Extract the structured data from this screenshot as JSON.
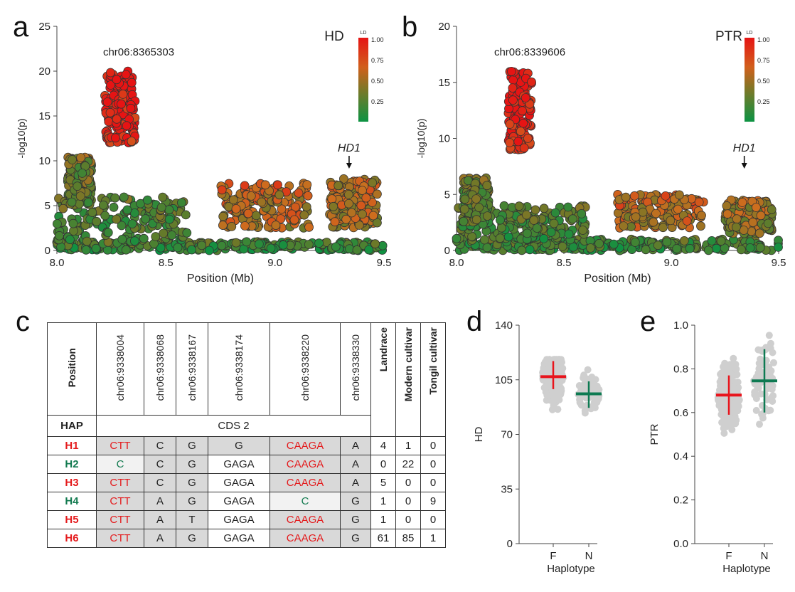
{
  "panels": {
    "a": "a",
    "b": "b",
    "c": "c",
    "d": "d",
    "e": "e"
  },
  "chart_data": [
    {
      "type": "scatter",
      "panel": "a",
      "trait": "HD",
      "lead_snp_label": "chr06:8365303",
      "gene_label": "HD1",
      "gene_position_mb": 9.34,
      "xlabel": "Position (Mb)",
      "ylabel": "-log10(p)",
      "xlim": [
        8.0,
        9.5
      ],
      "ylim": [
        0,
        25
      ],
      "xticks": [
        "8.0",
        "8.5",
        "9.0",
        "9.5"
      ],
      "yticks": [
        "0",
        "5",
        "10",
        "15",
        "20",
        "25"
      ],
      "legend_title": "LD",
      "legend_ticks": [
        "1.00",
        "0.75",
        "0.50",
        "0.25"
      ],
      "legend_placement": "top-right",
      "clusters": [
        {
          "x_range": [
            8.22,
            8.36
          ],
          "y_range": [
            12,
            20
          ],
          "ld": 0.95
        },
        {
          "x_range": [
            8.05,
            8.16
          ],
          "y_range": [
            5,
            10.5
          ],
          "ld": 0.35
        },
        {
          "x_range": [
            8.75,
            9.16
          ],
          "y_range": [
            2.5,
            7.5
          ],
          "ld": 0.6
        },
        {
          "x_range": [
            9.25,
            9.47
          ],
          "y_range": [
            2.5,
            8
          ],
          "ld": 0.55
        },
        {
          "x_range": [
            8.0,
            9.5
          ],
          "y_range": [
            0,
            1
          ],
          "ld": 0.2
        },
        {
          "x_range": [
            8.0,
            8.6
          ],
          "y_range": [
            1,
            6
          ],
          "ld": 0.25
        }
      ]
    },
    {
      "type": "scatter",
      "panel": "b",
      "trait": "PTR",
      "lead_snp_label": "chr06:8339606",
      "gene_label": "HD1",
      "gene_position_mb": 9.34,
      "xlabel": "Position (Mb)",
      "ylabel": "-log10(p)",
      "xlim": [
        8.0,
        9.5
      ],
      "ylim": [
        0,
        20
      ],
      "xticks": [
        "8.0",
        "8.5",
        "9.0",
        "9.5"
      ],
      "yticks": [
        "0",
        "5",
        "10",
        "15",
        "20"
      ],
      "legend_title": "LD",
      "legend_ticks": [
        "1.00",
        "0.75",
        "0.50",
        "0.25"
      ],
      "legend_placement": "top-right",
      "clusters": [
        {
          "x_range": [
            8.24,
            8.35
          ],
          "y_range": [
            9,
            16
          ],
          "ld": 0.95
        },
        {
          "x_range": [
            8.03,
            8.15
          ],
          "y_range": [
            2,
            6.5
          ],
          "ld": 0.3
        },
        {
          "x_range": [
            8.75,
            9.15
          ],
          "y_range": [
            2,
            5
          ],
          "ld": 0.6
        },
        {
          "x_range": [
            9.25,
            9.47
          ],
          "y_range": [
            1.5,
            4.5
          ],
          "ld": 0.5
        },
        {
          "x_range": [
            8.0,
            9.5
          ],
          "y_range": [
            0,
            1
          ],
          "ld": 0.2
        },
        {
          "x_range": [
            8.0,
            8.6
          ],
          "y_range": [
            1,
            4
          ],
          "ld": 0.25
        }
      ]
    },
    {
      "type": "scatter",
      "panel": "d",
      "xlabel": "Haplotype",
      "ylabel": "HD",
      "categories": [
        "F",
        "N"
      ],
      "ylim": [
        0,
        140
      ],
      "yticks": [
        "0",
        "35",
        "70",
        "105",
        "140"
      ],
      "series": [
        {
          "category": "F",
          "mean": 107,
          "sd_low": 99,
          "sd_high": 117,
          "min": 80,
          "max": 118,
          "color": "#e8141c"
        },
        {
          "category": "N",
          "mean": 96,
          "sd_low": 87,
          "sd_high": 104,
          "min": 80,
          "max": 113,
          "color": "#0e7a52"
        }
      ]
    },
    {
      "type": "scatter",
      "panel": "e",
      "xlabel": "Haplotype",
      "ylabel": "PTR",
      "categories": [
        "F",
        "N"
      ],
      "ylim": [
        0,
        1.0
      ],
      "yticks": [
        "0.0",
        "0.2",
        "0.4",
        "0.6",
        "0.8",
        "1.0"
      ],
      "series": [
        {
          "category": "F",
          "mean": 0.68,
          "sd_low": 0.59,
          "sd_high": 0.77,
          "min": 0.5,
          "max": 0.92,
          "color": "#e8141c"
        },
        {
          "category": "N",
          "mean": 0.745,
          "sd_low": 0.6,
          "sd_high": 0.89,
          "min": 0.44,
          "max": 0.96,
          "color": "#0e7a52"
        }
      ]
    }
  ],
  "table": {
    "position_label": "Position",
    "hap_label": "HAP",
    "cds_label": "CDS 2",
    "snp_columns": [
      "chr06:9338004",
      "chr06:9338068",
      "chr06:9338167",
      "chr06:9338174",
      "chr06:9338220",
      "chr06:9338330"
    ],
    "count_columns": [
      "Landrace",
      "Modern cultivar",
      "Tongil cultivar"
    ],
    "rows": [
      {
        "hap": "H1",
        "alleles": [
          "CTT",
          "C",
          "G",
          "G",
          "CAAGA",
          "A"
        ],
        "counts": [
          "4",
          "1",
          "0"
        ]
      },
      {
        "hap": "H2",
        "alleles": [
          "C",
          "C",
          "G",
          "GAGA",
          "CAAGA",
          "A"
        ],
        "counts": [
          "0",
          "22",
          "0"
        ]
      },
      {
        "hap": "H3",
        "alleles": [
          "CTT",
          "C",
          "G",
          "GAGA",
          "CAAGA",
          "A"
        ],
        "counts": [
          "5",
          "0",
          "0"
        ]
      },
      {
        "hap": "H4",
        "alleles": [
          "CTT",
          "A",
          "G",
          "GAGA",
          "C",
          "G"
        ],
        "counts": [
          "1",
          "0",
          "9"
        ]
      },
      {
        "hap": "H5",
        "alleles": [
          "CTT",
          "A",
          "T",
          "GAGA",
          "CAAGA",
          "G"
        ],
        "counts": [
          "1",
          "0",
          "0"
        ]
      },
      {
        "hap": "H6",
        "alleles": [
          "CTT",
          "A",
          "G",
          "GAGA",
          "CAAGA",
          "G"
        ],
        "counts": [
          "61",
          "85",
          "1"
        ]
      }
    ]
  }
}
